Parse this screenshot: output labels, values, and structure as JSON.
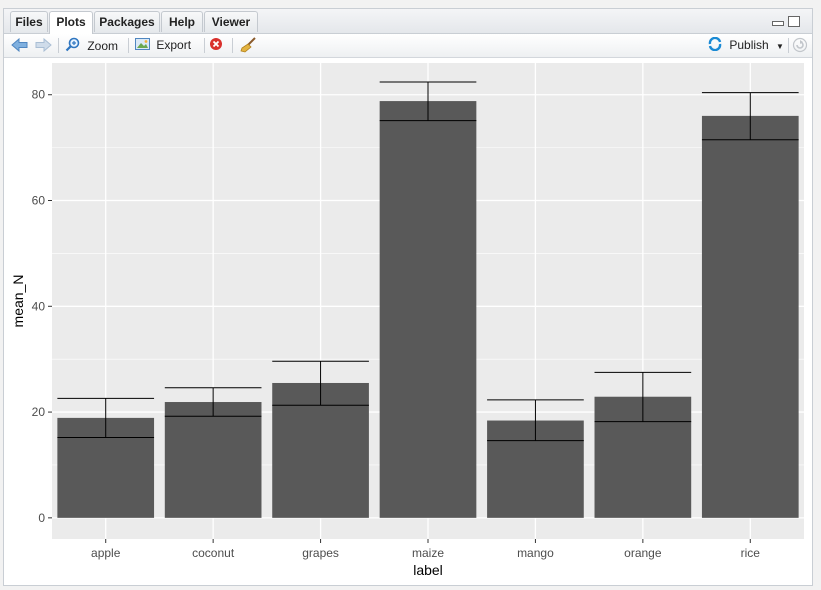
{
  "tabs": [
    {
      "label": "Files",
      "active": false
    },
    {
      "label": "Plots",
      "active": true
    },
    {
      "label": "Packages",
      "active": false
    },
    {
      "label": "Help",
      "active": false
    },
    {
      "label": "Viewer",
      "active": false
    }
  ],
  "toolbar": {
    "zoom_label": "Zoom",
    "export_label": "Export",
    "publish_label": "Publish"
  },
  "colors": {
    "panel_bg": "#ebebeb",
    "bar_fill": "#595959",
    "grid": "#ffffff",
    "accent": "#1a8ad4"
  },
  "chart_data": {
    "type": "bar",
    "categories": [
      "apple",
      "coconut",
      "grapes",
      "maize",
      "mango",
      "orange",
      "rice"
    ],
    "values": [
      18.9,
      21.9,
      25.5,
      78.8,
      18.4,
      22.9,
      76.0
    ],
    "error_low": [
      15.2,
      19.2,
      21.3,
      75.1,
      14.6,
      18.2,
      71.5
    ],
    "error_high": [
      22.6,
      24.6,
      29.6,
      82.4,
      22.3,
      27.5,
      80.4
    ],
    "xlabel": "label",
    "ylabel": "mean_N",
    "yticks": [
      0,
      20,
      40,
      60,
      80
    ],
    "ylim": [
      -4,
      86
    ],
    "grid": true
  }
}
